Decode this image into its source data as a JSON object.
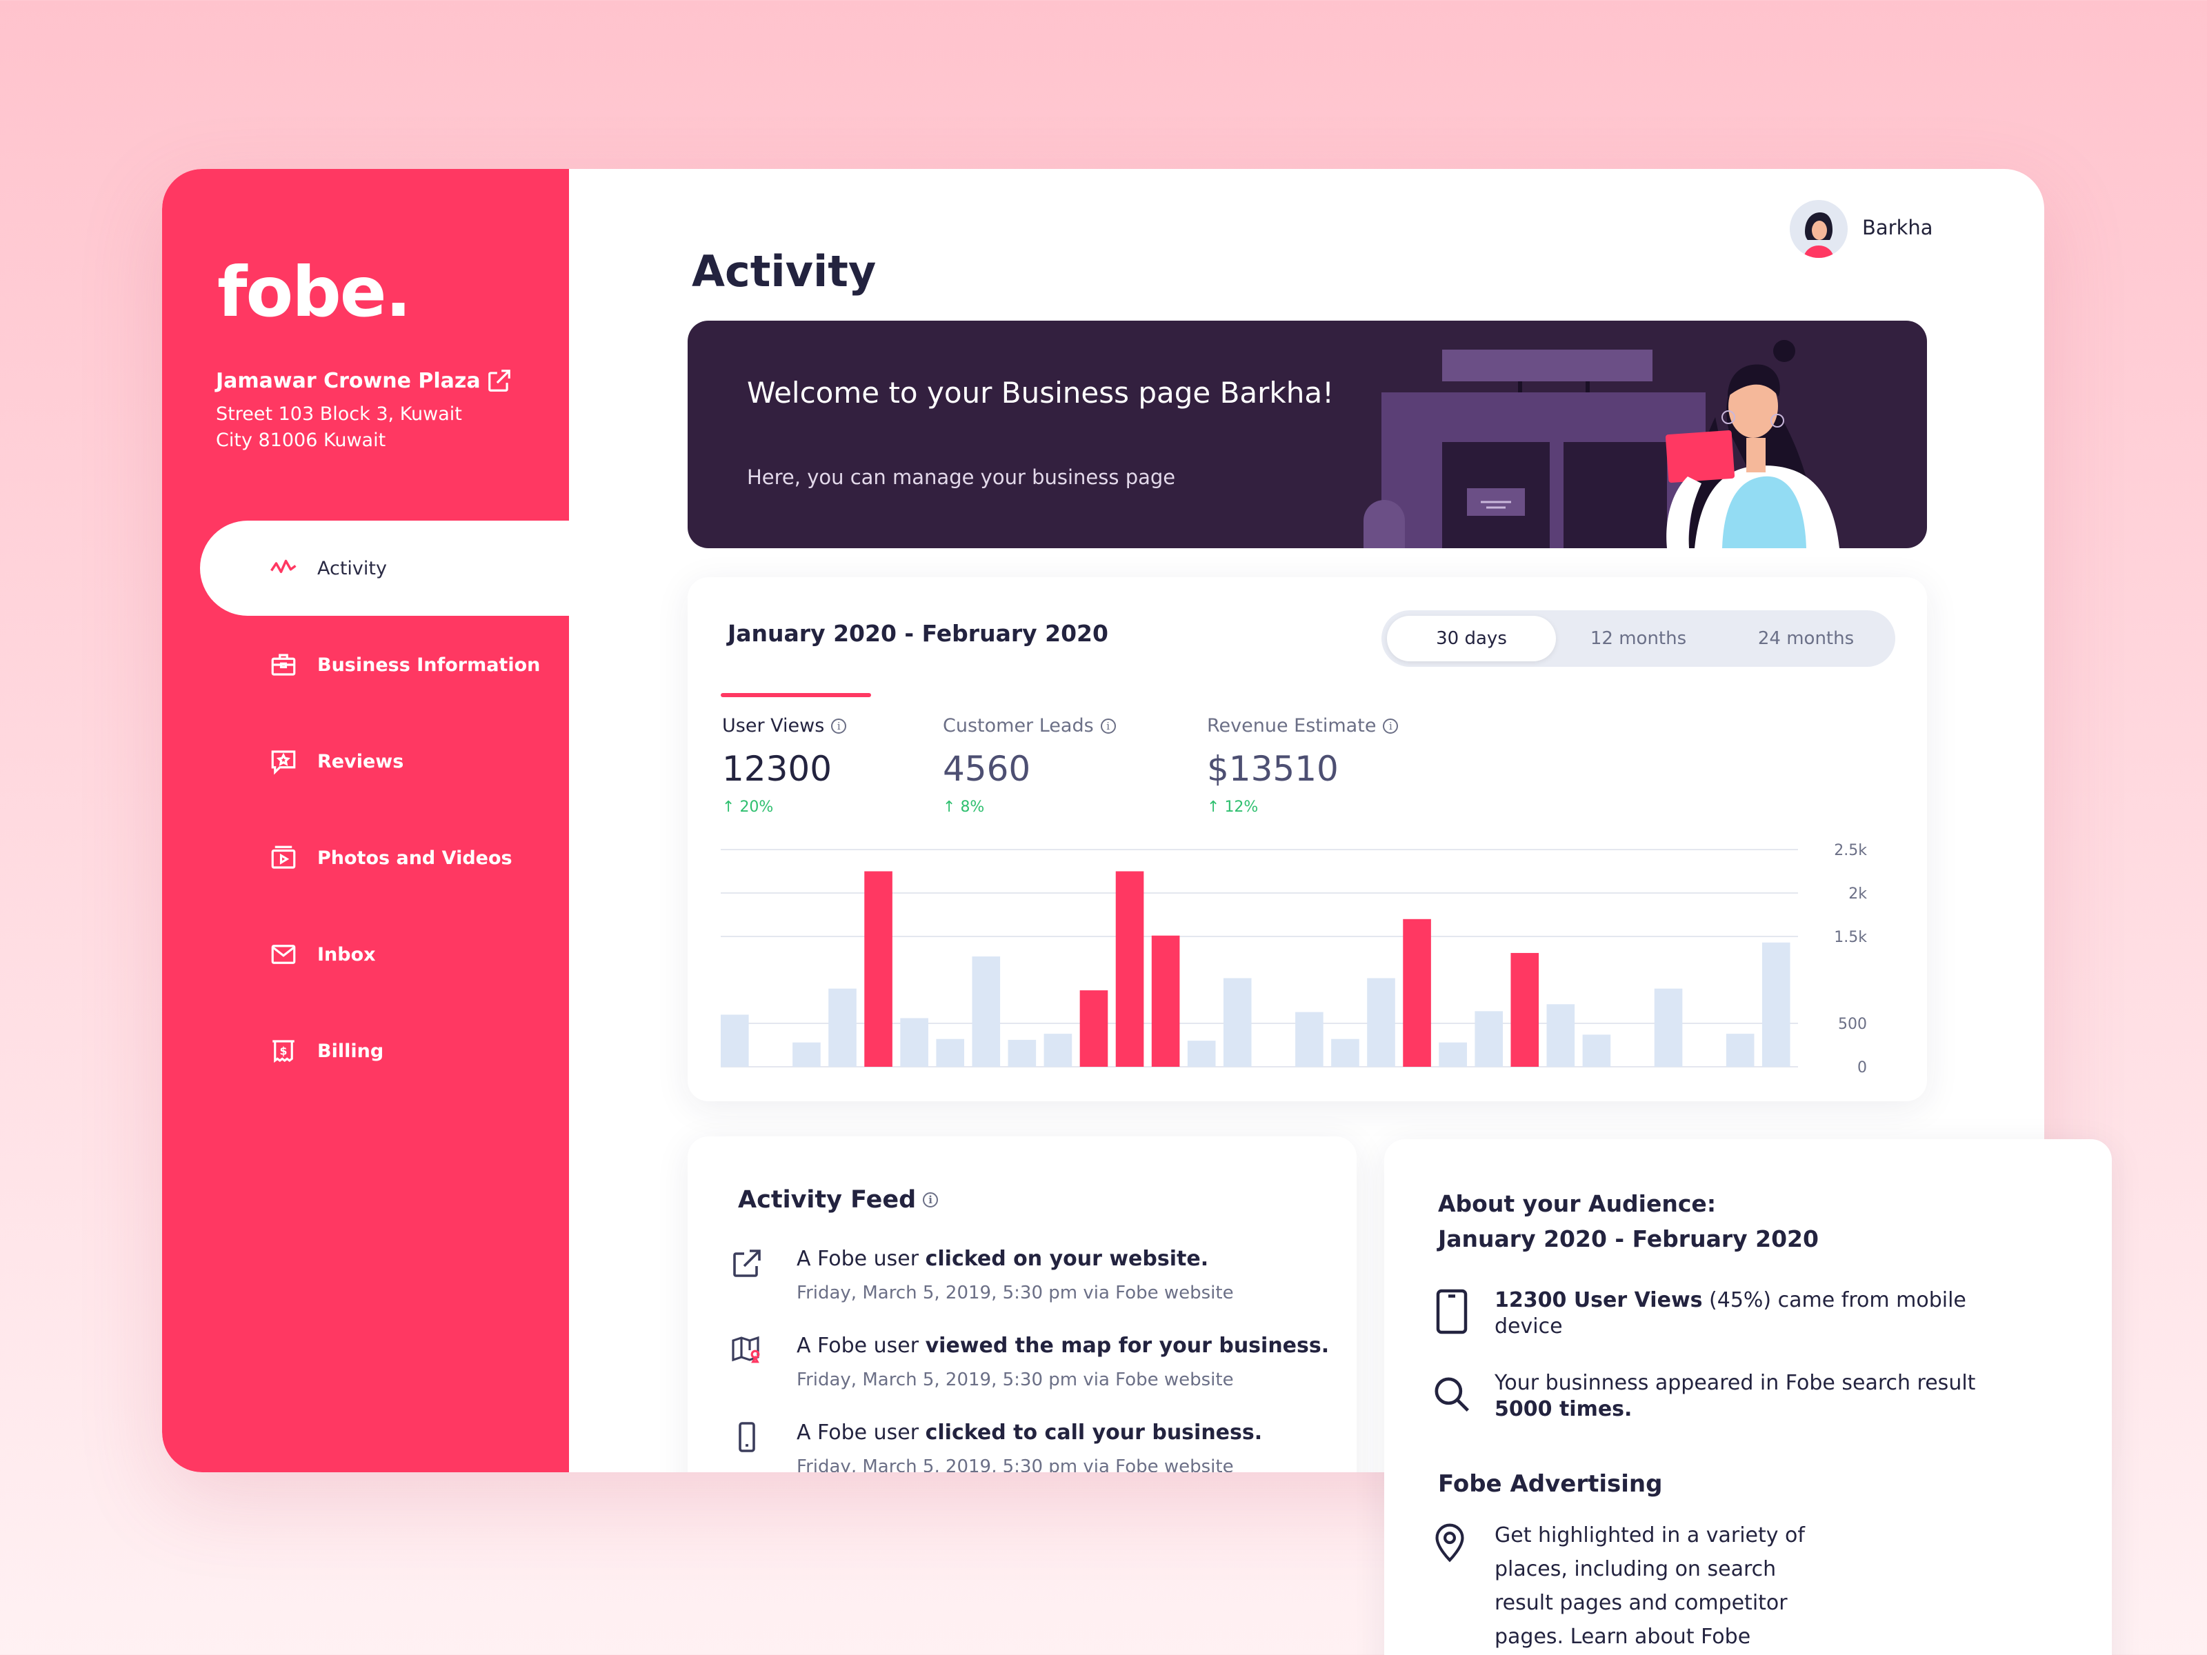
{
  "sidebar": {
    "logo": "fobe.",
    "business_name": "Jamawar Crowne Plaza",
    "address_line1": "Street 103 Block 3, Kuwait",
    "address_line2": "City 81006 Kuwait",
    "items": [
      {
        "label": "Activity",
        "icon": "activity-icon",
        "active": true
      },
      {
        "label": "Business Information",
        "icon": "briefcase-icon"
      },
      {
        "label": "Reviews",
        "icon": "review-star-icon"
      },
      {
        "label": "Photos and Videos",
        "icon": "media-icon"
      },
      {
        "label": "Inbox",
        "icon": "mail-icon"
      },
      {
        "label": "Billing",
        "icon": "billing-icon"
      }
    ]
  },
  "header": {
    "user_name": "Barkha",
    "page_title": "Activity"
  },
  "banner": {
    "title": "Welcome to your Business page Barkha!",
    "subtitle": "Here, you can manage your business page"
  },
  "stats": {
    "range_title": "January 2020 - February 2020",
    "periods": [
      {
        "label": "30 days",
        "active": true
      },
      {
        "label": "12 months"
      },
      {
        "label": "24 months"
      }
    ],
    "metrics": [
      {
        "label": "User Views",
        "value": "12300",
        "change": "20%",
        "selected": true
      },
      {
        "label": "Customer Leads",
        "value": "4560",
        "change": "8%"
      },
      {
        "label": "Revenue Estimate",
        "value": "$13510",
        "change": "12%"
      }
    ]
  },
  "chart_data": {
    "type": "bar",
    "ytick_labels": [
      "2.5k",
      "2k",
      "1.5k",
      "500",
      "0"
    ],
    "ylim": [
      0,
      2500
    ],
    "grid": true,
    "colors": {
      "highlight": "#ff3862",
      "normal": "#dbe6f5"
    },
    "values": [
      600,
      0,
      280,
      900,
      2250,
      560,
      320,
      1270,
      310,
      380,
      880,
      2250,
      1510,
      300,
      1020,
      0,
      630,
      320,
      1020,
      1700,
      280,
      640,
      1310,
      720,
      370,
      0,
      900,
      0,
      380,
      1430
    ],
    "highlighted": [
      4,
      10,
      11,
      12,
      19,
      22
    ]
  },
  "feed": {
    "title": "Activity Feed",
    "items": [
      {
        "icon": "external-link-icon",
        "prefix": "A Fobe user ",
        "bold": "clicked on your website.",
        "meta": "Friday, March 5, 2019, 5:30 pm via Fobe website"
      },
      {
        "icon": "map-icon",
        "prefix": "A Fobe user ",
        "bold": "viewed the map for your business.",
        "meta": "Friday, March 5, 2019, 5:30 pm via Fobe website"
      },
      {
        "icon": "phone-icon",
        "prefix": "A Fobe user ",
        "bold": "clicked to call your business.",
        "meta": "Friday, March 5, 2019, 5:30 pm via Fobe website"
      }
    ]
  },
  "audience": {
    "title_line1": "About your Audience:",
    "title_line2": "January 2020 - February 2020",
    "items": [
      {
        "icon": "mobile-icon",
        "bold": "12300 User Views",
        "rest": " (45%) came from mobile device"
      },
      {
        "icon": "search-icon",
        "pre": "Your businness appeared in Fobe search result ",
        "bold": "5000 times."
      }
    ],
    "ads_title": "Fobe Advertising",
    "ads_text": "Get highlighted in a variety of places, including on search result pages and competitor pages. Learn about Fobe"
  }
}
